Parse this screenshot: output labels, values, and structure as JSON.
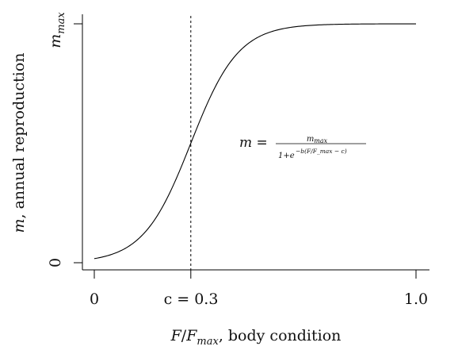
{
  "chart_data": {
    "type": "line",
    "xlabel": {
      "prefix": "F",
      "slash": "/",
      "fmax_base": "F",
      "fmax_sub": "max",
      "rest": ", body condition"
    },
    "ylabel": {
      "var": "m",
      "rest": ", annual reproduction"
    },
    "xlim": [
      -0.04,
      1.04
    ],
    "ylim": [
      -0.03,
      1.04
    ],
    "x_ticks": [
      {
        "value": 0,
        "label": "0"
      },
      {
        "value": 0.3,
        "label": "c = 0.3"
      },
      {
        "value": 1.0,
        "label": "1.0"
      }
    ],
    "y_ticks": [
      {
        "value": 0,
        "label": "0"
      },
      {
        "value": 1,
        "label_base": "m",
        "label_sub": "max"
      }
    ],
    "curve": {
      "formula": "m = m_max / (1 + exp(-b (F/F_max - c)))",
      "m_max": 1,
      "b": 13.5,
      "c": 0.3
    },
    "reference_line": {
      "x": 0.3,
      "style": "dashed"
    },
    "annotation": {
      "lhs": "m =",
      "numerator_base": "m",
      "numerator_sub": "max",
      "denominator": "1+e",
      "exponent": "−b(F/F_max − c)"
    },
    "grid": false,
    "legend": "none"
  }
}
